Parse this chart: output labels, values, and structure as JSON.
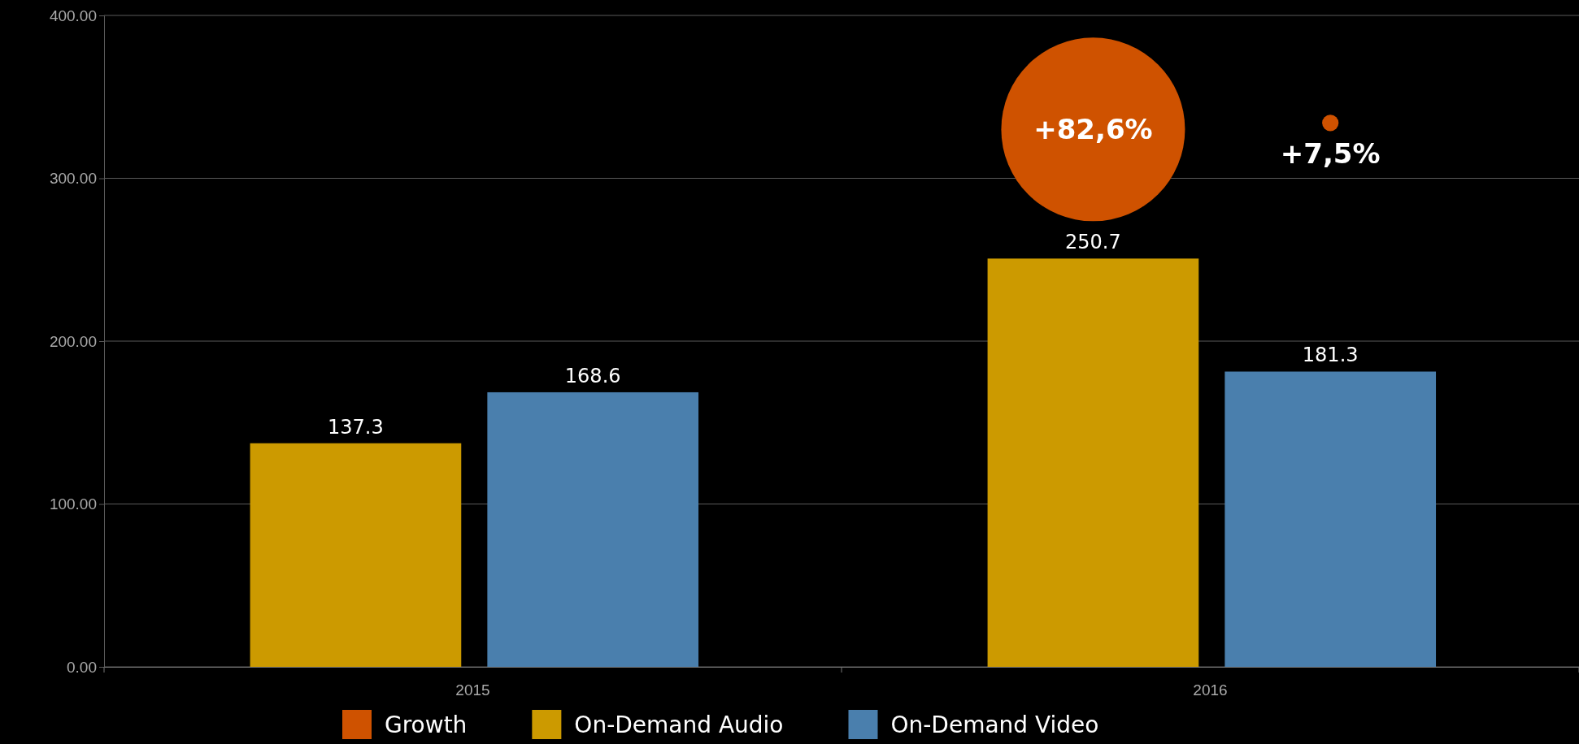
{
  "chart_data": {
    "type": "bar",
    "categories": [
      "2015",
      "2016"
    ],
    "series": [
      {
        "name": "Growth",
        "type": "bubble",
        "color": "#cf5200",
        "values": [
          null,
          330
        ],
        "sizes": [
          null,
          1
        ],
        "value_labels": [
          null,
          null
        ]
      },
      {
        "type": "bubble",
        "color": "#cf5200",
        "values": [
          null,
          334
        ],
        "sizes": [
          null,
          0.008
        ],
        "value_labels": [
          null,
          null
        ]
      },
      {
        "name": "On-Demand Audio",
        "color": "#cc9a00",
        "values": [
          137.3,
          250.7
        ]
      },
      {
        "name": "On-Demand Video",
        "color": "#4a7fad",
        "values": [
          168.6,
          181.3
        ]
      }
    ],
    "ylim": [
      0,
      400
    ],
    "yticks": [
      {
        "value": 0,
        "label": "0.00"
      },
      {
        "value": 100,
        "label": "100.00"
      },
      {
        "value": 200,
        "label": "200.00"
      },
      {
        "value": 300,
        "label": "300.00"
      },
      {
        "value": 400,
        "label": "400.00"
      }
    ],
    "annotations": [
      "+82,6%",
      "+7,5%"
    ],
    "grid": "y",
    "data_labels": true,
    "legend": "bottom"
  }
}
